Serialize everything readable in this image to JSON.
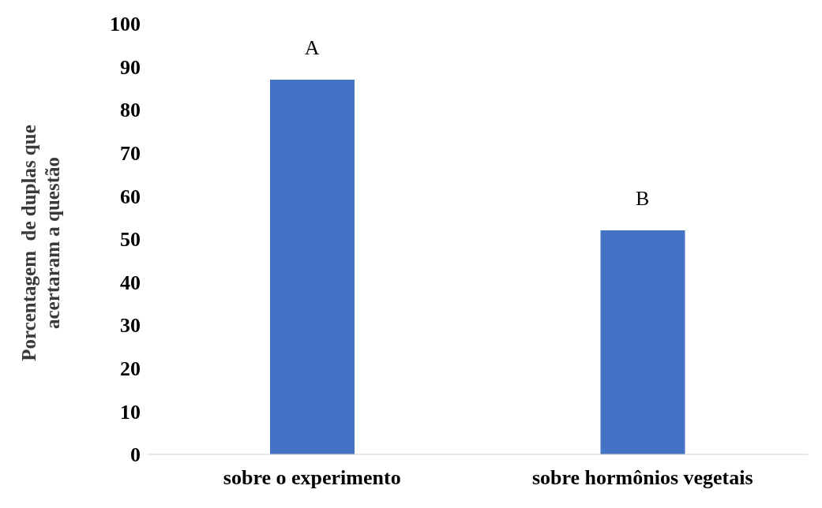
{
  "chart_data": {
    "type": "bar",
    "ylabel": "Porcentagem  de duplas que\nacertaram a questão",
    "categories": [
      "sobre o experimento",
      "sobre hormônios vegetais"
    ],
    "values": [
      87,
      52
    ],
    "color": "#4472c4",
    "ylim": [
      0,
      100
    ],
    "yticks": [
      0,
      10,
      20,
      30,
      40,
      50,
      60,
      70,
      80,
      90,
      100
    ],
    "grid": false,
    "annotations": [
      {
        "text": "A",
        "x": "sobre o experimento",
        "y": 87
      },
      {
        "text": "B",
        "x": "sobre hormônios vegetais",
        "y": 52
      }
    ]
  }
}
